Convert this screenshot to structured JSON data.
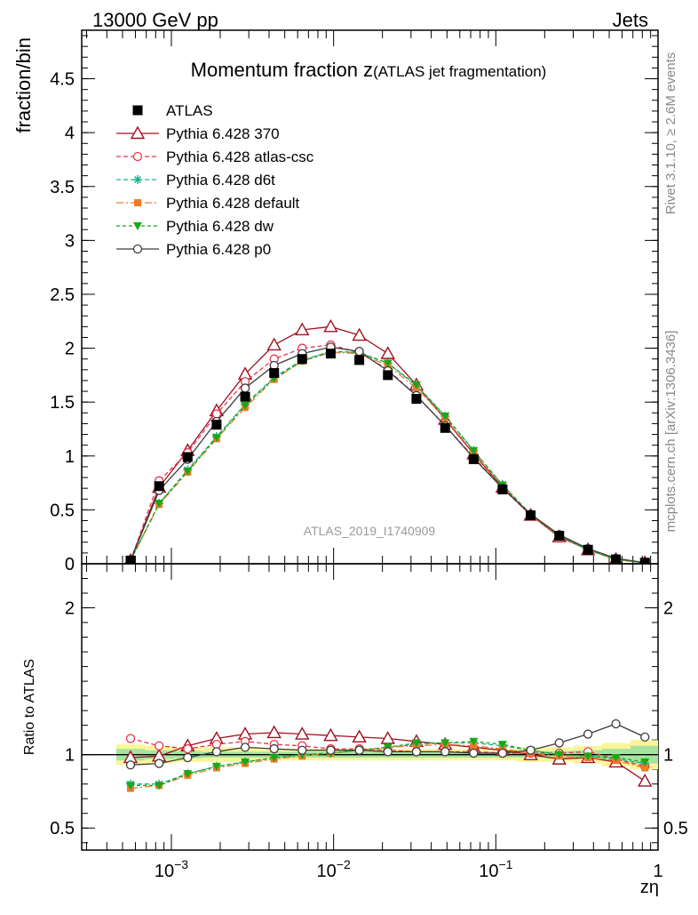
{
  "header": {
    "left": "13000 GeV pp",
    "right": "Jets"
  },
  "side_labels": {
    "rivet": "Rivet 3.1.10, ≥ 2.6M events",
    "mcplots": "mcplots.cern.ch [arXiv:1306.3436]"
  },
  "watermark": "ATLAS_2019_I1740909",
  "chart_data": [
    {
      "type": "line",
      "title_main": "Momentum fraction z",
      "title_sub": "(ATLAS jet fragmentation)",
      "ylabel": "fraction/bin",
      "xlabel": "zη",
      "xscale": "log",
      "xlim": [
        0.00028,
        1.0
      ],
      "ylim": [
        0,
        4.95
      ],
      "yticks": [
        0,
        0.5,
        1,
        1.5,
        2,
        2.5,
        3,
        3.5,
        4,
        4.5
      ],
      "ytick_labels": [
        "0",
        "0.5",
        "1",
        "1.5",
        "2",
        "2.5",
        "3",
        "3.5",
        "4",
        "4.5"
      ],
      "x": [
        0.00056,
        0.00084,
        0.00126,
        0.0019,
        0.00285,
        0.0043,
        0.0064,
        0.0096,
        0.0144,
        0.0216,
        0.0324,
        0.0487,
        0.073,
        0.11,
        0.164,
        0.246,
        0.37,
        0.55,
        0.83
      ],
      "series": [
        {
          "name": "ATLAS",
          "color": "#000000",
          "marker": "square",
          "dash": "none",
          "values": [
            0.03,
            0.72,
            0.99,
            1.29,
            1.55,
            1.77,
            1.9,
            1.95,
            1.89,
            1.75,
            1.53,
            1.26,
            0.97,
            0.69,
            0.45,
            0.26,
            0.13,
            0.04,
            0.01
          ],
          "err": [
            0.01,
            0.03,
            0.03,
            0.04,
            0.04,
            0.04,
            0.04,
            0.04,
            0.04,
            0.04,
            0.03,
            0.03,
            0.02,
            0.02,
            0.01,
            0.01,
            0.01,
            0.01,
            0.01
          ]
        },
        {
          "name": "Pythia 6.428 370",
          "color": "#a01020",
          "marker": "triangle-open",
          "dash": "none",
          "values": [
            0.03,
            0.71,
            1.05,
            1.42,
            1.76,
            2.03,
            2.17,
            2.2,
            2.12,
            1.95,
            1.66,
            1.34,
            1.02,
            0.71,
            0.45,
            0.25,
            0.13,
            0.04,
            0.01
          ]
        },
        {
          "name": "Pythia 6.428 atlas-csc",
          "color": "#e8334d",
          "marker": "circle-open",
          "dash": "5,3",
          "values": [
            0.03,
            0.77,
            1.03,
            1.39,
            1.69,
            1.9,
            2.0,
            2.03,
            1.96,
            1.8,
            1.56,
            1.28,
            0.99,
            0.7,
            0.45,
            0.26,
            0.13,
            0.04,
            0.01
          ]
        },
        {
          "name": "Pythia 6.428 d6t",
          "color": "#19b591",
          "marker": "star",
          "dash": "5,3",
          "values": [
            0.03,
            0.56,
            0.87,
            1.18,
            1.48,
            1.73,
            1.89,
            1.97,
            1.96,
            1.86,
            1.65,
            1.37,
            1.05,
            0.73,
            0.46,
            0.26,
            0.13,
            0.04,
            0.01
          ]
        },
        {
          "name": "Pythia 6.428 default",
          "color": "#f07a28",
          "marker": "square-small",
          "dash": "8,3,2,3",
          "values": [
            0.03,
            0.55,
            0.85,
            1.16,
            1.45,
            1.71,
            1.88,
            1.96,
            1.95,
            1.84,
            1.63,
            1.35,
            1.03,
            0.72,
            0.45,
            0.26,
            0.13,
            0.04,
            0.01
          ]
        },
        {
          "name": "Pythia 6.428 dw",
          "color": "#18a818",
          "marker": "triangle-down",
          "dash": "4,3",
          "values": [
            0.03,
            0.56,
            0.86,
            1.17,
            1.47,
            1.72,
            1.88,
            1.97,
            1.96,
            1.86,
            1.66,
            1.37,
            1.05,
            0.73,
            0.46,
            0.26,
            0.13,
            0.04,
            0.01
          ]
        },
        {
          "name": "Pythia 6.428 p0",
          "color": "#3c3c3c",
          "marker": "circle-open",
          "dash": "none",
          "values": [
            0.03,
            0.68,
            0.97,
            1.32,
            1.63,
            1.84,
            1.95,
            2.01,
            1.97,
            1.79,
            1.56,
            1.28,
            0.98,
            0.7,
            0.46,
            0.27,
            0.14,
            0.05,
            0.01
          ]
        }
      ]
    },
    {
      "type": "line",
      "ylabel": "Ratio to ATLAS",
      "xlabel": "zη",
      "xscale": "log",
      "xlim": [
        0.00028,
        1.0
      ],
      "ylim": [
        0.35,
        2.3
      ],
      "yticks": [
        0.5,
        1,
        2
      ],
      "ytick_labels": [
        "0.5",
        "1",
        "2"
      ],
      "xtick_labels": [
        "10−3",
        "10−2",
        "10−1",
        "1"
      ],
      "x": [
        0.00056,
        0.00084,
        0.00126,
        0.0019,
        0.00285,
        0.0043,
        0.0064,
        0.0096,
        0.0144,
        0.0216,
        0.0324,
        0.0487,
        0.073,
        0.11,
        0.164,
        0.246,
        0.37,
        0.55,
        0.83
      ],
      "band_yellow_halfwidth": [
        0.07,
        0.06,
        0.05,
        0.05,
        0.05,
        0.04,
        0.04,
        0.04,
        0.04,
        0.04,
        0.04,
        0.04,
        0.04,
        0.04,
        0.05,
        0.05,
        0.06,
        0.08,
        0.1
      ],
      "band_green_halfwidth": [
        0.04,
        0.03,
        0.025,
        0.02,
        0.02,
        0.02,
        0.02,
        0.02,
        0.02,
        0.02,
        0.02,
        0.02,
        0.02,
        0.02,
        0.02,
        0.025,
        0.03,
        0.04,
        0.06
      ],
      "series": [
        {
          "name": "Pythia 6.428 370",
          "values": [
            0.98,
            0.99,
            1.06,
            1.11,
            1.14,
            1.15,
            1.14,
            1.13,
            1.12,
            1.11,
            1.09,
            1.07,
            1.05,
            1.03,
            1.0,
            0.97,
            0.98,
            0.95,
            0.82
          ]
        },
        {
          "name": "Pythia 6.428 atlas-csc",
          "values": [
            1.11,
            1.06,
            1.04,
            1.07,
            1.09,
            1.07,
            1.06,
            1.04,
            1.04,
            1.03,
            1.02,
            1.02,
            1.02,
            1.01,
            1.01,
            1.01,
            1.02,
            0.97,
            0.92
          ]
        },
        {
          "name": "Pythia 6.428 d6t",
          "values": [
            0.8,
            0.8,
            0.87,
            0.92,
            0.95,
            0.98,
            1.0,
            1.01,
            1.03,
            1.05,
            1.07,
            1.08,
            1.08,
            1.06,
            1.03,
            1.0,
            0.99,
            0.97,
            0.94
          ]
        },
        {
          "name": "Pythia 6.428 default",
          "values": [
            0.77,
            0.79,
            0.86,
            0.91,
            0.94,
            0.97,
            0.99,
            1.01,
            1.03,
            1.05,
            1.06,
            1.07,
            1.06,
            1.04,
            1.01,
            0.99,
            0.98,
            0.96,
            0.91
          ]
        },
        {
          "name": "Pythia 6.428 dw",
          "values": [
            0.79,
            0.79,
            0.87,
            0.92,
            0.95,
            0.98,
            1.0,
            1.01,
            1.03,
            1.05,
            1.08,
            1.08,
            1.09,
            1.07,
            1.03,
            1.0,
            0.99,
            0.98,
            0.95
          ]
        },
        {
          "name": "Pythia 6.428 p0",
          "values": [
            0.93,
            0.94,
            0.98,
            1.02,
            1.05,
            1.04,
            1.03,
            1.03,
            1.03,
            1.02,
            1.02,
            1.02,
            1.01,
            1.01,
            1.03,
            1.08,
            1.14,
            1.21,
            1.12
          ]
        }
      ]
    }
  ]
}
